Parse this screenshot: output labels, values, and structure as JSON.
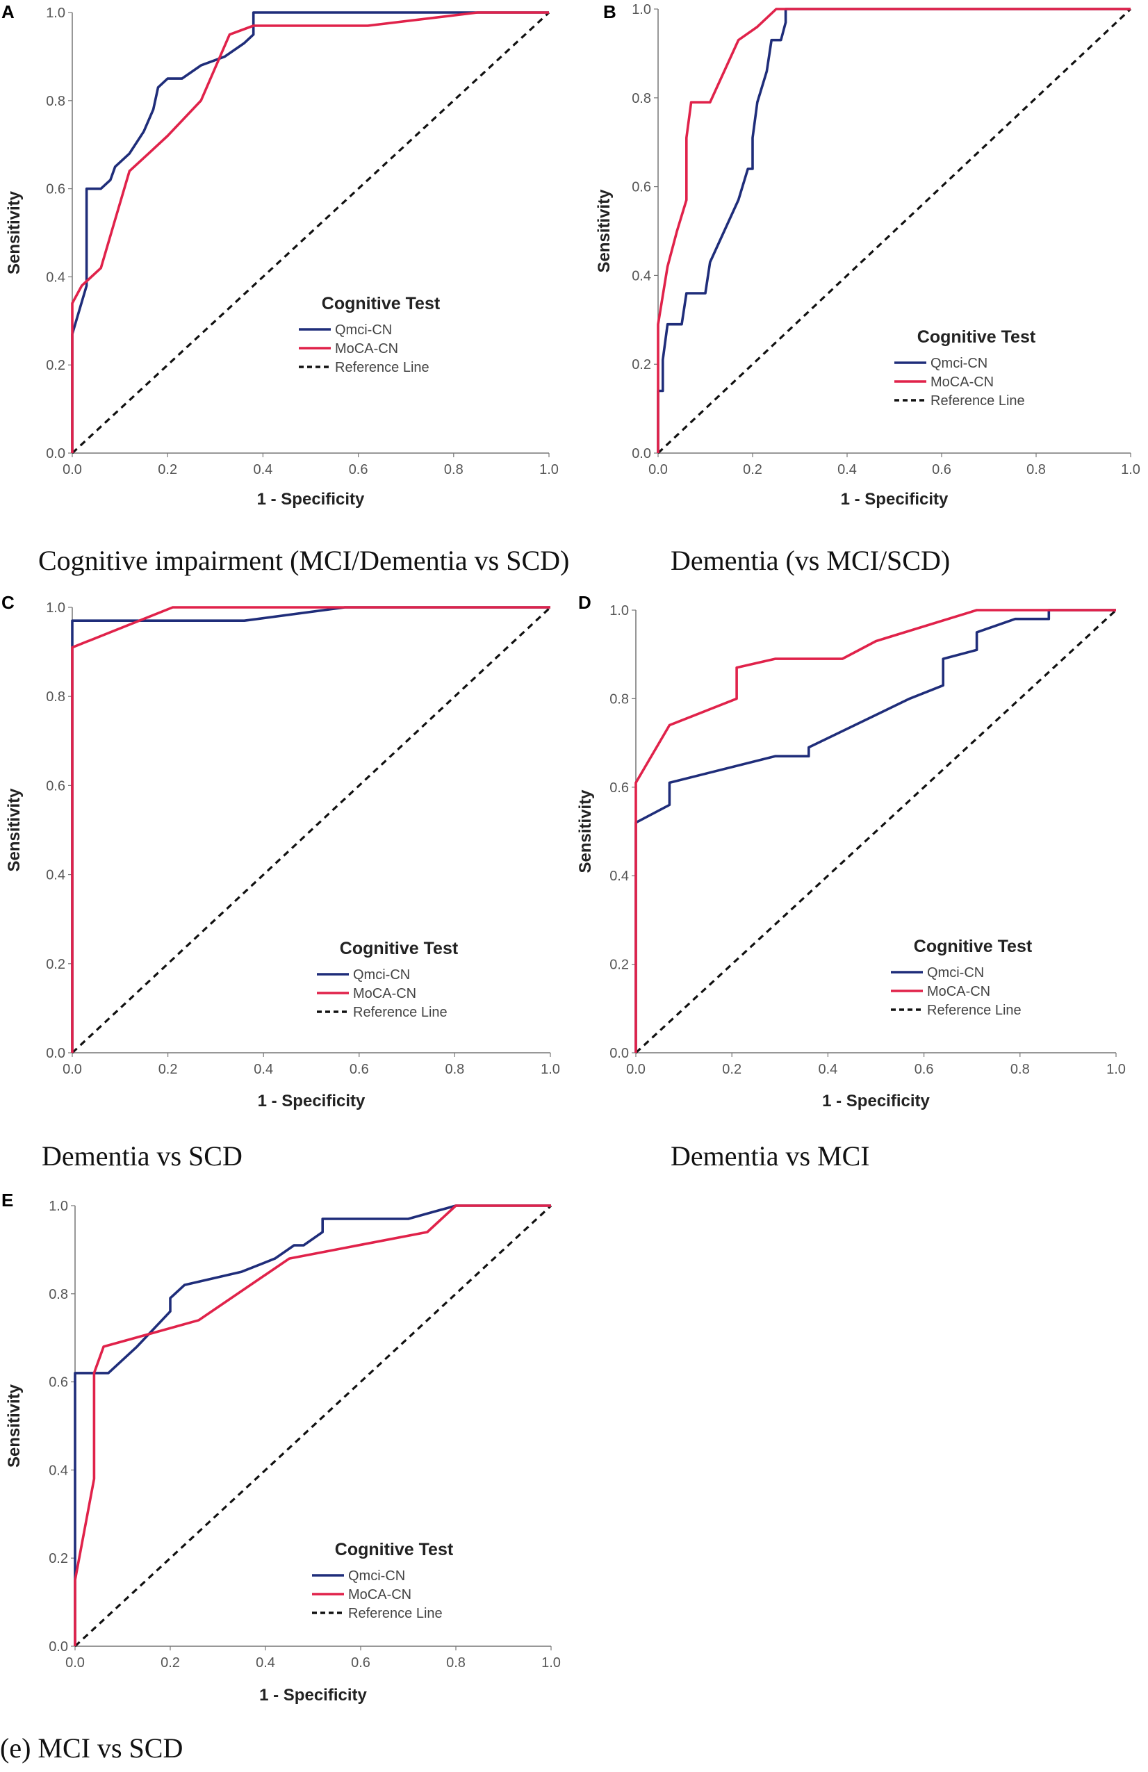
{
  "colors": {
    "qmci": "#1f2d7a",
    "moca": "#e0224a",
    "reference": "#111111",
    "axis": "#777777"
  },
  "chart_data": [
    {
      "type": "line",
      "panel_label": "A",
      "caption": "Cognitive impairment (MCI/Dementia vs SCD)",
      "xlabel": "1 - Specificity",
      "ylabel": "Sensitivity",
      "xlim": [
        0,
        1
      ],
      "ylim": [
        0,
        1
      ],
      "ticks": [
        "0.0",
        "0.2",
        "0.4",
        "0.6",
        "0.8",
        "1.0"
      ],
      "legend_title": "Cognitive Test",
      "legend": [
        "Qmci-CN",
        "MoCA-CN",
        "Reference Line"
      ],
      "series": [
        {
          "name": "Qmci-CN",
          "x": [
            0,
            0,
            0.03,
            0.03,
            0.06,
            0.08,
            0.09,
            0.12,
            0.15,
            0.17,
            0.18,
            0.2,
            0.23,
            0.27,
            0.32,
            0.36,
            0.38,
            0.38,
            0.6,
            0.7,
            0.82,
            1.0
          ],
          "y": [
            0,
            0.27,
            0.38,
            0.6,
            0.6,
            0.62,
            0.65,
            0.68,
            0.73,
            0.78,
            0.83,
            0.85,
            0.85,
            0.88,
            0.9,
            0.93,
            0.95,
            1.0,
            1.0,
            1.0,
            1.0,
            1.0
          ]
        },
        {
          "name": "MoCA-CN",
          "x": [
            0,
            0,
            0.02,
            0.06,
            0.09,
            0.12,
            0.16,
            0.2,
            0.27,
            0.33,
            0.38,
            0.62,
            0.85,
            1.0
          ],
          "y": [
            0,
            0.34,
            0.38,
            0.42,
            0.53,
            0.64,
            0.68,
            0.72,
            0.8,
            0.95,
            0.97,
            0.97,
            1.0,
            1.0
          ]
        },
        {
          "name": "Reference Line",
          "x": [
            0,
            1
          ],
          "y": [
            0,
            1
          ]
        }
      ]
    },
    {
      "type": "line",
      "panel_label": "B",
      "caption": "Dementia (vs MCI/SCD)",
      "xlabel": "1 - Specificity",
      "ylabel": "Sensitivity",
      "xlim": [
        0,
        1
      ],
      "ylim": [
        0,
        1
      ],
      "ticks": [
        "0.0",
        "0.2",
        "0.4",
        "0.6",
        "0.8",
        "1.0"
      ],
      "legend_title": "Cognitive Test",
      "legend": [
        "Qmci-CN",
        "MoCA-CN",
        "Reference Line"
      ],
      "series": [
        {
          "name": "Qmci-CN",
          "x": [
            0,
            0,
            0.01,
            0.01,
            0.02,
            0.03,
            0.05,
            0.06,
            0.08,
            0.1,
            0.11,
            0.14,
            0.17,
            0.19,
            0.2,
            0.2,
            0.21,
            0.23,
            0.24,
            0.24,
            0.26,
            0.27,
            0.27,
            1.0
          ],
          "y": [
            0,
            0.14,
            0.14,
            0.21,
            0.29,
            0.29,
            0.29,
            0.36,
            0.36,
            0.36,
            0.43,
            0.5,
            0.57,
            0.64,
            0.64,
            0.71,
            0.79,
            0.86,
            0.93,
            0.93,
            0.93,
            0.97,
            1.0,
            1.0
          ]
        },
        {
          "name": "MoCA-CN",
          "x": [
            0,
            0,
            0.02,
            0.04,
            0.06,
            0.06,
            0.07,
            0.11,
            0.14,
            0.17,
            0.21,
            0.25,
            1.0
          ],
          "y": [
            0,
            0.29,
            0.42,
            0.5,
            0.57,
            0.71,
            0.79,
            0.79,
            0.86,
            0.93,
            0.96,
            1.0,
            1.0
          ]
        },
        {
          "name": "Reference Line",
          "x": [
            0,
            1
          ],
          "y": [
            0,
            1
          ]
        }
      ]
    },
    {
      "type": "line",
      "panel_label": "C",
      "caption": "Dementia vs SCD",
      "xlabel": "1 - Specificity",
      "ylabel": "Sensitivity",
      "xlim": [
        0,
        1
      ],
      "ylim": [
        0,
        1
      ],
      "ticks": [
        "0.0",
        "0.2",
        "0.4",
        "0.6",
        "0.8",
        "1.0"
      ],
      "legend_title": "Cognitive Test",
      "legend": [
        "Qmci-CN",
        "MoCA-CN",
        "Reference Line"
      ],
      "series": [
        {
          "name": "Qmci-CN",
          "x": [
            0,
            0,
            0.36,
            0.57,
            1.0
          ],
          "y": [
            0,
            0.97,
            0.97,
            1.0,
            1.0
          ]
        },
        {
          "name": "MoCA-CN",
          "x": [
            0,
            0,
            0.21,
            1.0
          ],
          "y": [
            0,
            0.91,
            1.0,
            1.0
          ]
        },
        {
          "name": "Reference Line",
          "x": [
            0,
            1
          ],
          "y": [
            0,
            1
          ]
        }
      ]
    },
    {
      "type": "line",
      "panel_label": "D",
      "caption": "Dementia vs MCI",
      "xlabel": "1 - Specificity",
      "ylabel": "Sensitivity",
      "xlim": [
        0,
        1
      ],
      "ylim": [
        0,
        1
      ],
      "ticks": [
        "0.0",
        "0.2",
        "0.4",
        "0.6",
        "0.8",
        "1.0"
      ],
      "legend_title": "Cognitive Test",
      "legend": [
        "Qmci-CN",
        "MoCA-CN",
        "Reference Line"
      ],
      "series": [
        {
          "name": "Qmci-CN",
          "x": [
            0,
            0,
            0.07,
            0.07,
            0.29,
            0.36,
            0.36,
            0.57,
            0.64,
            0.64,
            0.71,
            0.71,
            0.79,
            0.86,
            0.86,
            1.0
          ],
          "y": [
            0,
            0.52,
            0.56,
            0.61,
            0.67,
            0.67,
            0.69,
            0.8,
            0.83,
            0.89,
            0.91,
            0.95,
            0.98,
            0.98,
            1.0,
            1.0
          ]
        },
        {
          "name": "MoCA-CN",
          "x": [
            0,
            0,
            0.07,
            0.21,
            0.21,
            0.29,
            0.43,
            0.5,
            0.71,
            1.0
          ],
          "y": [
            0,
            0.61,
            0.74,
            0.8,
            0.87,
            0.89,
            0.89,
            0.93,
            1.0,
            1.0
          ]
        },
        {
          "name": "Reference Line",
          "x": [
            0,
            1
          ],
          "y": [
            0,
            1
          ]
        }
      ]
    },
    {
      "type": "line",
      "panel_label": "E",
      "caption": "(e) MCI vs SCD",
      "xlabel": "1 - Specificity",
      "ylabel": "Sensitivity",
      "xlim": [
        0,
        1
      ],
      "ylim": [
        0,
        1
      ],
      "ticks": [
        "0.0",
        "0.2",
        "0.4",
        "0.6",
        "0.8",
        "1.0"
      ],
      "legend_title": "Cognitive Test",
      "legend": [
        "Qmci-CN",
        "MoCA-CN",
        "Reference Line"
      ],
      "series": [
        {
          "name": "Qmci-CN",
          "x": [
            0,
            0,
            0.07,
            0.13,
            0.2,
            0.2,
            0.23,
            0.35,
            0.42,
            0.46,
            0.48,
            0.52,
            0.52,
            0.7,
            0.8,
            1.0
          ],
          "y": [
            0,
            0.62,
            0.62,
            0.68,
            0.76,
            0.79,
            0.82,
            0.85,
            0.88,
            0.91,
            0.91,
            0.94,
            0.97,
            0.97,
            1.0,
            1.0
          ]
        },
        {
          "name": "MoCA-CN",
          "x": [
            0,
            0,
            0.04,
            0.04,
            0.06,
            0.26,
            0.45,
            0.74,
            0.8,
            1.0
          ],
          "y": [
            0,
            0.15,
            0.38,
            0.62,
            0.68,
            0.74,
            0.88,
            0.94,
            1.0,
            1.0
          ]
        },
        {
          "name": "Reference Line",
          "x": [
            0,
            1
          ],
          "y": [
            0,
            1
          ]
        }
      ]
    }
  ]
}
